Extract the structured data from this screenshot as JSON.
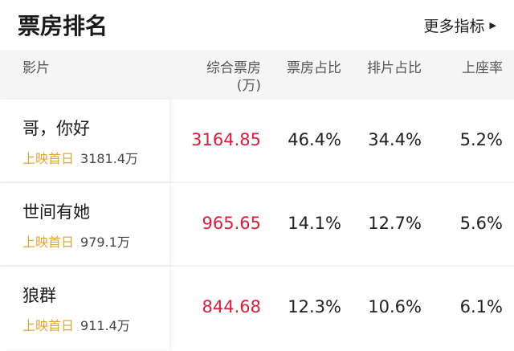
{
  "header": {
    "title": "票房排名",
    "more_label": "更多指标",
    "more_icon": "triangle-right-icon"
  },
  "columns": [
    "影片",
    "综合票房\n(万)",
    "票房占比",
    "排片占比",
    "上座率"
  ],
  "columns_split": {
    "box_office_line1": "综合票房",
    "box_office_line2": "(万)"
  },
  "rows": [
    {
      "name": "哥，你好",
      "first_day_label": "上映首日",
      "first_day": "3181.4万",
      "box_office": "3164.85",
      "box_share": "46.4%",
      "screen_share": "34.4%",
      "occupancy": "5.2%"
    },
    {
      "name": "世间有她",
      "first_day_label": "上映首日",
      "first_day": "979.1万",
      "box_office": "965.65",
      "box_share": "14.1%",
      "screen_share": "12.7%",
      "occupancy": "5.6%"
    },
    {
      "name": "狼群",
      "first_day_label": "上映首日",
      "first_day": "911.4万",
      "box_office": "844.68",
      "box_share": "12.3%",
      "screen_share": "10.6%",
      "occupancy": "6.1%"
    }
  ],
  "colors": {
    "accent_red": "#d81e3c",
    "label_gold": "#e0a43a"
  }
}
